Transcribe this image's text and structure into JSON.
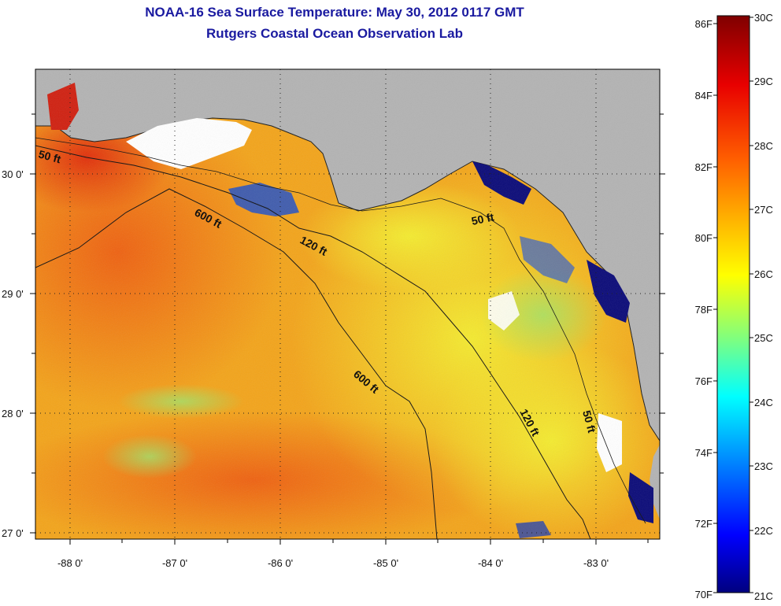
{
  "title": "NOAA-16 Sea Surface Temperature:  May 30, 2012 0117 GMT",
  "subtitle": "Rutgers Coastal Ocean Observation Lab",
  "map": {
    "lon_labels": [
      "-88 0'",
      "-87 0'",
      "-86 0'",
      "-85 0'",
      "-84 0'",
      "-83 0'"
    ],
    "lat_labels": [
      "30 0'",
      "29 0'",
      "28 0'",
      "27 0'"
    ],
    "grid": "dotted"
  },
  "contours": [
    {
      "label": "50 ft"
    },
    {
      "label": "600 ft"
    },
    {
      "label": "120 ft"
    },
    {
      "label": "50 ft"
    },
    {
      "label": "600 ft"
    },
    {
      "label": "120 ft"
    },
    {
      "label": "50 ft"
    }
  ],
  "colorbar": {
    "fahrenheit_labels": [
      "86F",
      "84F",
      "82F",
      "80F",
      "78F",
      "76F",
      "74F",
      "72F",
      "70F"
    ],
    "celsius_labels": [
      "30C",
      "29C",
      "28C",
      "27C",
      "26C",
      "25C",
      "24C",
      "23C",
      "22C",
      "21C"
    ],
    "min_c": 21,
    "max_c": 30,
    "colors_high_to_low": [
      "#7f0000",
      "#ff0000",
      "#ff7f00",
      "#ffff00",
      "#7fff7f",
      "#00ffff",
      "#007fff",
      "#0000ff",
      "#00007f"
    ]
  },
  "colors": {
    "land": "#b3b3b3",
    "cloud": "#ffffff",
    "title": "#1a1aa0",
    "warm_water": "#f07a1c",
    "mid_water": "#f6c00e",
    "cool_water": "#e9e94a"
  }
}
